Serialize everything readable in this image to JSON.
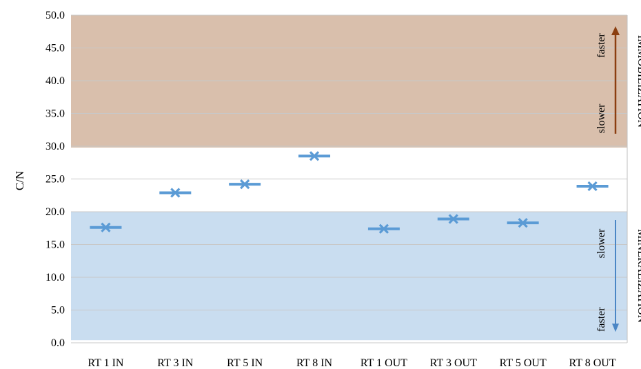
{
  "chart_data": {
    "type": "scatter",
    "categories": [
      "RT 1 IN",
      "RT 3 IN",
      "RT 5 IN",
      "RT 8 IN",
      "RT 1 OUT",
      "RT 3 OUT",
      "RT 5 OUT",
      "RT 8 OUT"
    ],
    "values": [
      17.6,
      22.9,
      24.2,
      28.5,
      17.4,
      18.9,
      18.3,
      23.9
    ],
    "ylabel": "C/N",
    "xlabel": "",
    "title": "",
    "ylim": [
      0,
      50
    ],
    "yticks": [
      "0.0",
      "5.0",
      "10.0",
      "15.0",
      "20.0",
      "25.0",
      "30.0",
      "35.0",
      "40.0",
      "45.0",
      "50.0"
    ],
    "grid": true,
    "legend": "none",
    "bands": [
      {
        "name": "IMMOBILIZATION",
        "from": 29.8,
        "to": 50,
        "color": "#d9bfac",
        "arrow_color": "#8b3e10",
        "arrow_direction": "up",
        "notes": [
          "slower",
          "faster"
        ]
      },
      {
        "name": "MINERALIZATION",
        "from": 0.4,
        "to": 20,
        "color": "#c9ddf0",
        "arrow_color": "#4a86c5",
        "arrow_direction": "down",
        "notes": [
          "slower",
          "faster"
        ]
      }
    ],
    "colors": {
      "marker": "#5b9bd5",
      "grid": "#c8c8c8",
      "axis": "#bfbfbf"
    }
  }
}
